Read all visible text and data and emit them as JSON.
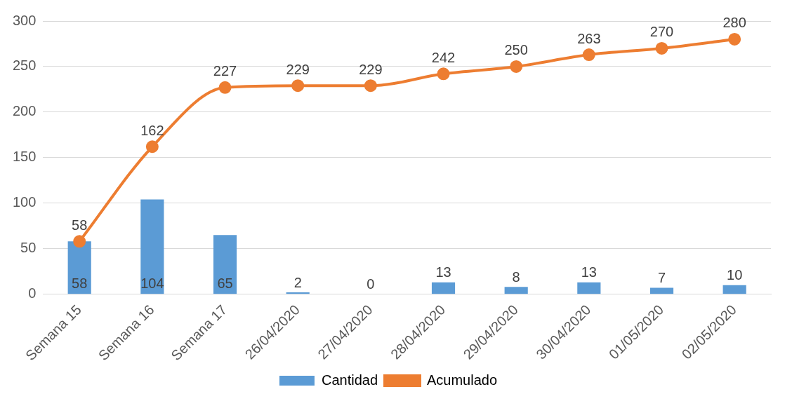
{
  "chart_data": {
    "type": "bar",
    "categories": [
      "Semana 15",
      "Semana 16",
      "Semana 17",
      "26/04/2020",
      "27/04/2020",
      "28/04/2020",
      "29/04/2020",
      "30/04/2020",
      "01/05/2020",
      "02/05/2020"
    ],
    "series": [
      {
        "name": "Cantidad",
        "color": "#5b9bd5",
        "values": [
          58,
          104,
          65,
          2,
          0,
          13,
          8,
          13,
          7,
          10
        ]
      },
      {
        "name": "Acumulado",
        "type": "line",
        "color": "#ed7d31",
        "values": [
          58,
          162,
          227,
          229,
          229,
          242,
          250,
          263,
          270,
          280
        ]
      }
    ],
    "ylim": [
      0,
      300
    ],
    "yticks": [
      0,
      50,
      100,
      150,
      200,
      250,
      300
    ],
    "grid": "y",
    "legend": "bottom",
    "data_labels": true,
    "marker": "circle",
    "line_style": "solid"
  }
}
